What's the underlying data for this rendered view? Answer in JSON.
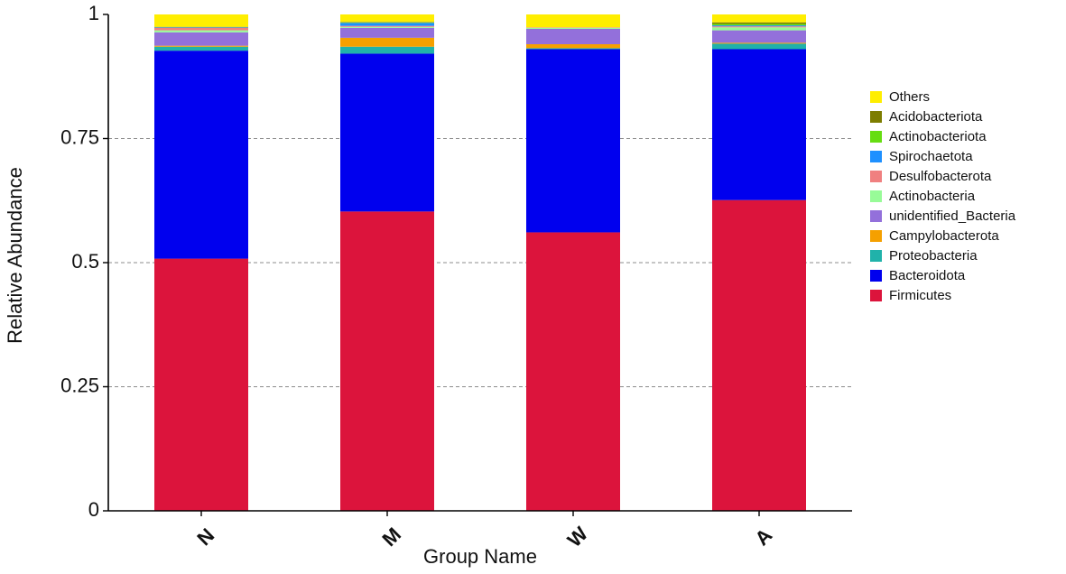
{
  "chart_data": {
    "type": "bar",
    "stacked": true,
    "xlabel": "Group Name",
    "ylabel": "Relative Abundance",
    "ylim": [
      0,
      1
    ],
    "yticks": [
      {
        "value": 0,
        "label": "0"
      },
      {
        "value": 0.25,
        "label": "0.25"
      },
      {
        "value": 0.5,
        "label": "0.5"
      },
      {
        "value": 0.75,
        "label": "0.75"
      },
      {
        "value": 1,
        "label": "1"
      }
    ],
    "grid": "horizontal dashed",
    "legend_position": "right",
    "categories": [
      "N",
      "M",
      "W",
      "A"
    ],
    "series": [
      {
        "name": "Firmicutes",
        "color": "#dc143c",
        "values": [
          0.508,
          0.603,
          0.561,
          0.626
        ]
      },
      {
        "name": "Bacteroidota",
        "color": "#0000ee",
        "values": [
          0.419,
          0.318,
          0.369,
          0.304
        ]
      },
      {
        "name": "Proteobacteria",
        "color": "#20b2aa",
        "values": [
          0.008,
          0.014,
          0.002,
          0.011
        ]
      },
      {
        "name": "Campylobacterota",
        "color": "#f5a000",
        "values": [
          0.002,
          0.018,
          0.008,
          0.002
        ]
      },
      {
        "name": "unidentified_Bacteria",
        "color": "#9370db",
        "values": [
          0.027,
          0.02,
          0.031,
          0.025
        ]
      },
      {
        "name": "Actinobacteria",
        "color": "#98fb98",
        "values": [
          0.004,
          0.002,
          0.002,
          0.006
        ]
      },
      {
        "name": "Desulfobacterota",
        "color": "#f08080",
        "values": [
          0.005,
          0.002,
          0.001,
          0.002
        ]
      },
      {
        "name": "Spirochaetota",
        "color": "#1e90ff",
        "values": [
          0.001,
          0.006,
          0.0,
          0.002
        ]
      },
      {
        "name": "Actinobacteriota",
        "color": "#66dd11",
        "values": [
          0.0,
          0.001,
          0.0,
          0.003
        ]
      },
      {
        "name": "Acidobacteriota",
        "color": "#7d7d00",
        "values": [
          0.001,
          0.001,
          0.0,
          0.003
        ]
      },
      {
        "name": "Others",
        "color": "#ffee00",
        "values": [
          0.025,
          0.015,
          0.026,
          0.016
        ]
      }
    ]
  }
}
